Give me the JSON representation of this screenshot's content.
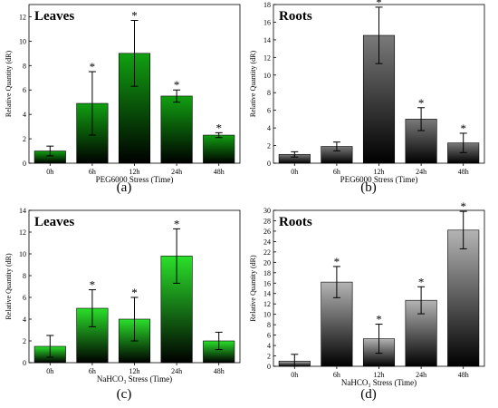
{
  "chart_data": [
    {
      "id": "a",
      "type": "bar",
      "title": "Leaves",
      "panel_label": "(a)",
      "xlabel": "PEG6000 Stress (Time)",
      "ylabel": "Relative Quantity (dR)",
      "categories": [
        "0h",
        "6h",
        "12h",
        "24h",
        "48h"
      ],
      "values": [
        1.0,
        4.9,
        9.0,
        5.5,
        2.3
      ],
      "errors": [
        0.4,
        2.6,
        2.7,
        0.5,
        0.2
      ],
      "significance": [
        "",
        "*",
        "*",
        "*",
        "*"
      ],
      "ylim": [
        0,
        13
      ],
      "yticks": [
        0,
        2,
        4,
        6,
        8,
        10,
        12
      ],
      "bar_color": "#11a011",
      "grid": false
    },
    {
      "id": "b",
      "type": "bar",
      "title": "Roots",
      "panel_label": "(b)",
      "xlabel": "PEG6000 Stress (Time)",
      "ylabel": "Relative Quantity (dR)",
      "categories": [
        "0h",
        "6h",
        "12h",
        "24h",
        "48h"
      ],
      "values": [
        1.0,
        1.9,
        14.5,
        5.0,
        2.3
      ],
      "errors": [
        0.3,
        0.5,
        3.2,
        1.3,
        1.1
      ],
      "significance": [
        "",
        "",
        "*",
        "*",
        "*"
      ],
      "ylim": [
        0,
        18
      ],
      "yticks": [
        0,
        2,
        4,
        6,
        8,
        10,
        12,
        14,
        16,
        18
      ],
      "bar_color": "#7a7a7a",
      "grid": false
    },
    {
      "id": "c",
      "type": "bar",
      "title": "Leaves",
      "panel_label": "(c)",
      "xlabel": "NaHCO₃ Stress (Time)",
      "ylabel": "Relative Quantity (dR)",
      "categories": [
        "0h",
        "6h",
        "12h",
        "24h",
        "48h"
      ],
      "values": [
        1.5,
        5.0,
        4.0,
        9.8,
        2.0
      ],
      "errors": [
        1.0,
        1.7,
        2.0,
        2.5,
        0.8
      ],
      "significance": [
        "",
        "*",
        "*",
        "*",
        ""
      ],
      "ylim": [
        0,
        14
      ],
      "yticks": [
        0,
        2,
        4,
        6,
        8,
        10,
        12,
        14
      ],
      "bar_color": "#2ae02a",
      "grid": false
    },
    {
      "id": "d",
      "type": "bar",
      "title": "Roots",
      "panel_label": "(d)",
      "xlabel": "NaHCO₃ Stress (Time)",
      "ylabel": "Relative Quantity (dR)",
      "categories": [
        "0h",
        "6h",
        "12h",
        "24h",
        "48h"
      ],
      "values": [
        1.0,
        16.2,
        5.3,
        12.7,
        26.2
      ],
      "errors": [
        1.3,
        3.0,
        2.8,
        2.6,
        3.6
      ],
      "significance": [
        "",
        "*",
        "*",
        "*",
        "*"
      ],
      "ylim": [
        0,
        30
      ],
      "yticks": [
        0,
        2,
        4,
        6,
        8,
        10,
        12,
        14,
        16,
        18,
        20,
        22,
        24,
        26,
        28,
        30
      ],
      "bar_color": "#b4b4b4",
      "grid": false
    }
  ]
}
